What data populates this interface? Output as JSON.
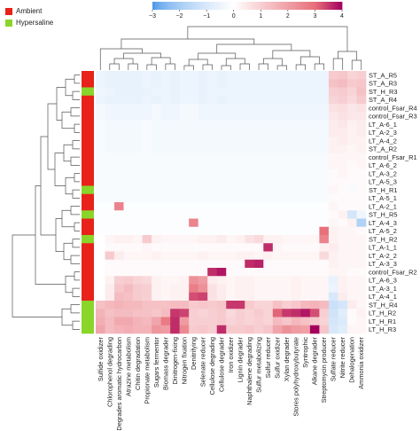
{
  "legend": {
    "groups": [
      {
        "label": "Ambient",
        "color": "#e8211b"
      },
      {
        "label": "Hypersaline",
        "color": "#8ad52a"
      }
    ]
  },
  "colorbar": {
    "ticks": [
      -3,
      -2,
      -1,
      0,
      1,
      2,
      3,
      4
    ],
    "range": [
      -3,
      4
    ],
    "colors": [
      "#3b8ee8",
      "#ffffff",
      "#e8707a",
      "#a3005e"
    ]
  },
  "chart_data": {
    "type": "heatmap",
    "title": "",
    "rows": [
      "ST_A_R5",
      "ST_A_R3",
      "ST_H_R3",
      "ST_A_R4",
      "control_Fsar_R4",
      "control_Fsar_R3",
      "LT_A-6_1",
      "LT_A-2_3",
      "LT_A-4_2",
      "ST_A_R2",
      "control_Fsar_R1",
      "LT_A-6_2",
      "LT_A-3_2",
      "LT_A-5_3",
      "ST_H_R1",
      "LT_A-5_1",
      "LT_A-2_1",
      "ST_H_R5",
      "LT_A-4_3",
      "LT_A-5_2",
      "ST_H_R2",
      "LT_A-1_1",
      "LT_A-2_2",
      "LT_A-3_3",
      "control_Fsar_R2",
      "LT_A-6_3",
      "LT_A-3_1",
      "LT_A-4_1",
      "ST_H_R4",
      "LT_H_R2",
      "LT_H_R1",
      "LT_H_R3"
    ],
    "row_groups": [
      "Ambient",
      "Ambient",
      "Hypersaline",
      "Ambient",
      "Ambient",
      "Ambient",
      "Ambient",
      "Ambient",
      "Ambient",
      "Ambient",
      "Ambient",
      "Ambient",
      "Ambient",
      "Ambient",
      "Hypersaline",
      "Ambient",
      "Ambient",
      "Hypersaline",
      "Ambient",
      "Ambient",
      "Hypersaline",
      "Ambient",
      "Ambient",
      "Ambient",
      "Ambient",
      "Ambient",
      "Ambient",
      "Ambient",
      "Hypersaline",
      "Hypersaline",
      "Hypersaline",
      "Hypersaline"
    ],
    "columns": [
      "Sulfide oxidizer",
      "Chlorophenol degrading",
      "Degrades aromatic hydrocarbon",
      "Atrazine metabolism",
      "Chitin degradation",
      "Propionate metabolism",
      "Sugars fermentor",
      "Biomass degrader",
      "Dinitrogen-fixing",
      "Nitrogen fixation",
      "Denitrifying",
      "Selenate reducer",
      "Cellulose degrading",
      "Cellulose degrader",
      "Iron oxidizer",
      "Lignin degrader",
      "Naphthalene degrading",
      "Sulfur metabolizing",
      "Sulfur reducer",
      "Sulfur oxidizer",
      "Xylan degrader",
      "Stores polyhydroxybutyrate",
      "Syntrophic",
      "Alkane degrader",
      "Streptomycin producer",
      "Sulfate reducer",
      "Nitrite reducer",
      "Dehalogenation",
      "Ammonia oxidizer"
    ],
    "values": [
      [
        -0.5,
        -0.6,
        -0.6,
        -0.6,
        -0.6,
        -0.5,
        -0.6,
        -0.5,
        -0.6,
        -0.5,
        -0.5,
        -0.6,
        -0.5,
        -0.6,
        -0.5,
        -0.5,
        -0.5,
        -0.5,
        -0.5,
        -0.5,
        -0.5,
        -0.5,
        -0.5,
        -0.5,
        -0.5,
        1.1,
        1.2,
        0.9,
        1.0
      ],
      [
        -0.5,
        -0.6,
        -0.6,
        -0.6,
        -0.6,
        -0.5,
        -0.6,
        -0.5,
        -0.6,
        -0.5,
        -0.5,
        -0.6,
        -0.5,
        -0.6,
        -0.5,
        -0.5,
        -0.5,
        -0.5,
        -0.5,
        -0.5,
        -0.5,
        -0.5,
        -0.5,
        -0.5,
        -0.5,
        1.3,
        1.4,
        1.1,
        1.2
      ],
      [
        -0.4,
        -0.5,
        -0.6,
        -0.6,
        -0.6,
        -0.6,
        -0.5,
        -0.5,
        -0.6,
        -0.5,
        -0.5,
        -0.6,
        -0.5,
        -0.5,
        -0.5,
        -0.5,
        -0.5,
        -0.5,
        -0.5,
        -0.5,
        -0.5,
        -0.5,
        -0.5,
        -0.5,
        -0.5,
        1.0,
        1.1,
        0.9,
        1.3
      ],
      [
        -0.5,
        -0.6,
        -0.6,
        -0.6,
        -0.6,
        -0.5,
        -0.6,
        -0.5,
        -0.6,
        -0.5,
        -0.5,
        -0.6,
        -0.5,
        -0.6,
        -0.5,
        -0.5,
        -0.5,
        -0.5,
        -0.5,
        -0.5,
        -0.5,
        -0.5,
        -0.5,
        -0.5,
        -0.5,
        0.9,
        1.0,
        0.8,
        1.1
      ],
      [
        -0.3,
        -0.4,
        -0.4,
        -0.4,
        -0.4,
        -0.4,
        -0.3,
        -0.4,
        -0.4,
        -0.3,
        -0.3,
        -0.4,
        -0.4,
        -0.4,
        -0.4,
        -0.4,
        -0.4,
        -0.4,
        -0.4,
        -0.4,
        -0.4,
        -0.4,
        -0.4,
        -0.4,
        -0.4,
        0.6,
        0.7,
        0.5,
        0.6
      ],
      [
        -0.3,
        -0.4,
        -0.4,
        -0.4,
        -0.4,
        -0.4,
        -0.3,
        -0.4,
        -0.4,
        -0.3,
        -0.3,
        -0.4,
        -0.4,
        -0.4,
        -0.4,
        -0.4,
        -0.4,
        -0.4,
        -0.4,
        -0.4,
        -0.4,
        -0.4,
        -0.4,
        -0.4,
        -0.4,
        0.5,
        0.6,
        0.5,
        0.5
      ],
      [
        -0.2,
        -0.3,
        -0.3,
        -0.3,
        -0.3,
        -0.2,
        -0.3,
        -0.3,
        -0.3,
        -0.3,
        -0.3,
        -0.3,
        -0.3,
        -0.3,
        -0.3,
        -0.3,
        -0.3,
        -0.3,
        -0.3,
        -0.3,
        -0.3,
        -0.3,
        -0.3,
        -0.3,
        -0.3,
        0.4,
        0.5,
        0.3,
        0.4
      ],
      [
        -0.2,
        -0.3,
        -0.3,
        -0.3,
        -0.3,
        -0.2,
        -0.3,
        -0.3,
        -0.3,
        -0.3,
        -0.3,
        -0.3,
        -0.3,
        -0.3,
        -0.3,
        -0.3,
        -0.3,
        -0.3,
        -0.3,
        -0.3,
        -0.3,
        -0.3,
        -0.3,
        -0.3,
        -0.3,
        0.4,
        0.4,
        0.3,
        0.4
      ],
      [
        -0.2,
        -0.3,
        -0.3,
        -0.3,
        -0.3,
        -0.2,
        -0.3,
        -0.3,
        -0.3,
        -0.3,
        -0.3,
        -0.3,
        -0.3,
        -0.3,
        -0.3,
        -0.3,
        -0.3,
        -0.3,
        -0.3,
        -0.3,
        -0.3,
        -0.3,
        -0.3,
        -0.3,
        -0.3,
        0.3,
        0.4,
        0.3,
        0.3
      ],
      [
        -0.2,
        -0.3,
        -0.3,
        -0.3,
        -0.3,
        -0.2,
        -0.3,
        -0.3,
        -0.3,
        -0.3,
        -0.3,
        -0.3,
        -0.3,
        -0.3,
        -0.3,
        -0.3,
        -0.3,
        -0.3,
        -0.3,
        -0.3,
        -0.3,
        -0.3,
        -0.3,
        -0.3,
        -0.3,
        0.3,
        0.3,
        0.2,
        0.3
      ],
      [
        -0.2,
        -0.2,
        -0.2,
        -0.2,
        -0.2,
        -0.2,
        -0.2,
        -0.2,
        -0.2,
        -0.2,
        -0.2,
        -0.2,
        -0.2,
        -0.2,
        -0.2,
        -0.2,
        -0.2,
        -0.2,
        -0.2,
        -0.2,
        -0.2,
        -0.2,
        -0.2,
        -0.2,
        -0.2,
        0.2,
        0.2,
        0.2,
        0.2
      ],
      [
        -0.2,
        -0.2,
        -0.2,
        -0.2,
        -0.2,
        -0.2,
        -0.2,
        -0.2,
        -0.2,
        -0.2,
        -0.2,
        -0.2,
        -0.2,
        -0.2,
        -0.2,
        -0.2,
        -0.2,
        -0.2,
        -0.2,
        -0.2,
        -0.2,
        -0.2,
        -0.2,
        -0.2,
        -0.2,
        0.2,
        0.2,
        0.1,
        0.2
      ],
      [
        -0.2,
        -0.2,
        -0.2,
        -0.2,
        -0.2,
        -0.2,
        -0.2,
        -0.2,
        -0.2,
        -0.2,
        -0.2,
        -0.2,
        -0.2,
        -0.2,
        -0.2,
        -0.2,
        -0.2,
        -0.2,
        -0.2,
        -0.2,
        -0.2,
        -0.2,
        -0.2,
        -0.2,
        -0.2,
        0.1,
        0.2,
        0.1,
        0.1
      ],
      [
        -0.2,
        -0.2,
        -0.2,
        -0.2,
        -0.2,
        -0.2,
        -0.2,
        -0.2,
        -0.2,
        -0.2,
        -0.2,
        -0.2,
        -0.2,
        -0.2,
        -0.2,
        -0.2,
        -0.2,
        -0.2,
        -0.2,
        -0.2,
        -0.2,
        -0.2,
        -0.2,
        -0.2,
        -0.2,
        0.1,
        0.1,
        0.1,
        0.1
      ],
      [
        -0.2,
        -0.2,
        -0.2,
        -0.2,
        -0.2,
        -0.2,
        -0.2,
        -0.2,
        -0.2,
        -0.2,
        -0.2,
        -0.2,
        -0.2,
        -0.2,
        -0.2,
        -0.2,
        -0.2,
        -0.2,
        -0.2,
        -0.2,
        -0.2,
        -0.2,
        -0.2,
        -0.2,
        -0.2,
        0.2,
        0.1,
        -0.2,
        0.1
      ],
      [
        -0.2,
        -0.2,
        -0.2,
        -0.2,
        -0.2,
        -0.2,
        -0.2,
        -0.2,
        -0.2,
        -0.2,
        -0.2,
        -0.2,
        -0.2,
        -0.2,
        -0.2,
        -0.2,
        -0.2,
        -0.2,
        -0.2,
        -0.2,
        -0.2,
        -0.2,
        -0.2,
        -0.2,
        -0.2,
        0.1,
        0.1,
        0.1,
        0.1
      ],
      [
        -0.1,
        -0.1,
        2.6,
        -0.1,
        -0.1,
        -0.1,
        -0.1,
        -0.1,
        -0.1,
        -0.1,
        -0.1,
        -0.1,
        -0.1,
        -0.1,
        -0.1,
        -0.1,
        -0.1,
        -0.1,
        -0.1,
        -0.1,
        -0.1,
        -0.1,
        -0.1,
        -0.1,
        -0.1,
        0.2,
        0.1,
        0.1,
        0.1
      ],
      [
        -0.1,
        -0.1,
        -0.1,
        -0.1,
        -0.1,
        -0.1,
        -0.1,
        -0.1,
        -0.1,
        -0.1,
        -0.1,
        -0.1,
        -0.1,
        -0.1,
        -0.1,
        -0.1,
        -0.1,
        -0.1,
        -0.1,
        -0.1,
        -0.1,
        -0.1,
        -0.1,
        -0.1,
        -0.1,
        0.1,
        0.3,
        -1.1,
        -0.4
      ],
      [
        -0.1,
        -0.1,
        -0.1,
        -0.1,
        -0.1,
        -0.1,
        -0.1,
        -0.1,
        -0.1,
        -0.1,
        2.6,
        -0.1,
        -0.1,
        -0.1,
        -0.1,
        -0.1,
        -0.1,
        -0.1,
        -0.1,
        -0.1,
        -0.1,
        -0.1,
        -0.1,
        -0.1,
        -0.1,
        0.2,
        0.1,
        0.3,
        -1.8
      ],
      [
        -0.1,
        -0.1,
        -0.1,
        -0.1,
        -0.1,
        -0.1,
        -0.1,
        -0.1,
        -0.1,
        -0.1,
        -0.1,
        -0.1,
        -0.1,
        -0.1,
        -0.1,
        -0.1,
        -0.1,
        -0.1,
        -0.1,
        -0.1,
        -0.1,
        -0.1,
        -0.1,
        -0.1,
        3.0,
        0.3,
        0.2,
        0.2,
        0.1
      ],
      [
        0.0,
        0.2,
        0.3,
        0.3,
        0.2,
        1.1,
        0.3,
        0.2,
        0.2,
        0.2,
        0.2,
        0.3,
        0.3,
        0.4,
        0.2,
        0.3,
        0.6,
        0.8,
        0.3,
        0.3,
        0.2,
        0.2,
        0.2,
        0.2,
        2.6,
        0.3,
        0.2,
        0.2,
        0.2
      ],
      [
        0.0,
        0.1,
        0.1,
        0.1,
        0.1,
        0.2,
        0.1,
        0.1,
        0.1,
        0.1,
        0.1,
        0.1,
        0.1,
        0.1,
        0.1,
        0.1,
        0.1,
        0.1,
        3.6,
        0.2,
        0.1,
        0.1,
        0.1,
        0.1,
        0.3,
        0.4,
        0.2,
        0.2,
        0.2
      ],
      [
        0.0,
        1.1,
        0.4,
        0.2,
        0.2,
        0.2,
        0.3,
        0.2,
        0.2,
        0.2,
        0.2,
        0.3,
        0.2,
        0.2,
        0.2,
        0.3,
        0.3,
        0.2,
        0.3,
        0.2,
        0.2,
        0.2,
        0.2,
        0.2,
        0.8,
        0.3,
        0.2,
        0.2,
        0.2
      ],
      [
        0.0,
        0.1,
        0.1,
        0.1,
        0.1,
        0.1,
        0.1,
        0.1,
        0.1,
        0.1,
        0.1,
        0.1,
        0.1,
        0.1,
        0.1,
        0.1,
        3.6,
        3.7,
        0.1,
        0.1,
        0.1,
        0.1,
        0.1,
        0.1,
        0.1,
        0.3,
        0.2,
        0.2,
        0.2
      ],
      [
        0.0,
        0.1,
        0.1,
        0.1,
        0.1,
        0.1,
        0.1,
        0.1,
        0.1,
        0.1,
        0.1,
        0.1,
        3.6,
        3.8,
        0.1,
        0.1,
        0.1,
        0.1,
        0.1,
        0.1,
        0.1,
        0.1,
        0.1,
        0.1,
        0.1,
        0.2,
        0.2,
        0.1,
        0.1
      ],
      [
        0.0,
        0.3,
        1.0,
        1.1,
        0.9,
        0.8,
        0.3,
        0.2,
        0.2,
        0.3,
        2.3,
        2.1,
        0.4,
        0.3,
        0.2,
        0.3,
        0.3,
        0.2,
        0.2,
        0.2,
        0.2,
        0.3,
        0.2,
        0.2,
        0.2,
        -0.6,
        0.3,
        0.2,
        0.2
      ],
      [
        0.0,
        0.4,
        1.2,
        1.4,
        1.1,
        1.0,
        0.3,
        0.2,
        0.3,
        0.3,
        2.7,
        2.3,
        0.6,
        0.4,
        0.2,
        0.3,
        0.3,
        0.2,
        0.2,
        0.2,
        0.2,
        0.3,
        0.2,
        0.2,
        0.2,
        -0.5,
        0.3,
        0.2,
        0.2
      ],
      [
        0.0,
        0.4,
        1.4,
        1.3,
        1.1,
        1.0,
        0.3,
        0.2,
        0.3,
        0.3,
        3.3,
        3.4,
        0.6,
        0.4,
        0.2,
        0.3,
        0.3,
        0.2,
        0.2,
        0.2,
        0.2,
        0.3,
        0.2,
        0.2,
        0.2,
        -1.0,
        0.4,
        0.2,
        0.2
      ],
      [
        1.3,
        1.5,
        1.6,
        1.5,
        1.5,
        1.3,
        1.3,
        1.3,
        1.4,
        1.4,
        1.1,
        1.2,
        1.1,
        1.2,
        3.5,
        3.5,
        1.1,
        0.9,
        0.9,
        1.3,
        1.0,
        1.2,
        1.5,
        1.6,
        1.4,
        -1.3,
        -1.1,
        0.4,
        0.2
      ],
      [
        1.6,
        1.3,
        1.4,
        1.4,
        1.3,
        1.3,
        1.2,
        1.4,
        3.5,
        3.4,
        1.0,
        0.9,
        1.0,
        1.1,
        0.8,
        1.0,
        0.9,
        1.1,
        0.9,
        3.1,
        3.5,
        3.6,
        3.8,
        3.3,
        1.0,
        -1.2,
        -0.8,
        0.1,
        0.3
      ],
      [
        1.7,
        1.4,
        1.8,
        1.8,
        1.6,
        1.5,
        1.9,
        2.8,
        3.6,
        2.1,
        1.0,
        1.0,
        1.0,
        1.1,
        0.9,
        1.0,
        0.9,
        1.0,
        0.9,
        1.4,
        1.2,
        1.5,
        1.3,
        1.1,
        0.9,
        -1.1,
        -0.9,
        0.1,
        0.2
      ],
      [
        1.9,
        1.4,
        1.6,
        1.7,
        1.6,
        1.6,
        2.2,
        2.1,
        3.6,
        2.5,
        1.1,
        1.2,
        1.0,
        3.6,
        1.1,
        1.1,
        1.2,
        1.0,
        1.2,
        1.9,
        2.3,
        2.1,
        2.0,
        4.0,
        1.2,
        -1.0,
        -0.8,
        0.2,
        0.2
      ]
    ],
    "vmin": -3,
    "vmax": 4
  }
}
